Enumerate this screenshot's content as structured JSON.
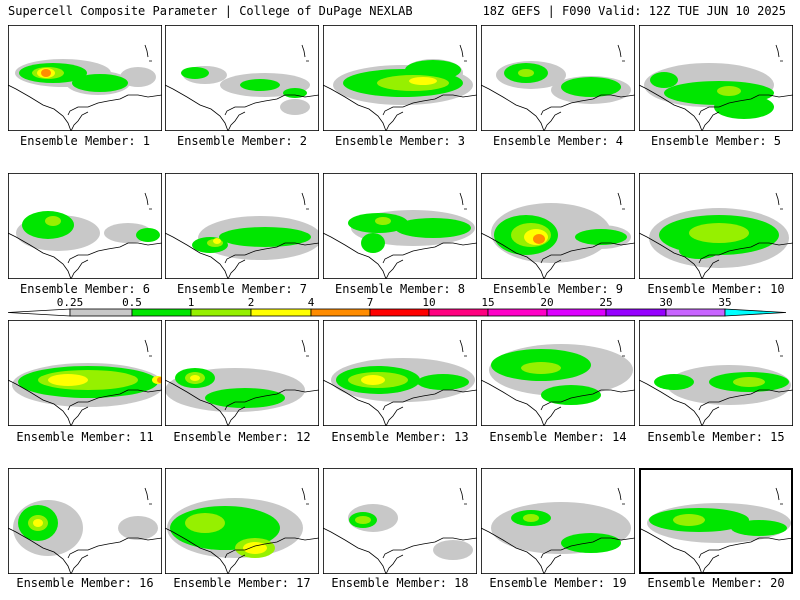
{
  "header": {
    "left": "Supercell Composite Parameter | College of DuPage NEXLAB",
    "right": "18Z GEFS | F090 Valid: 12Z TUE JUN 10 2025"
  },
  "members": [
    {
      "label": "Ensemble Member: 1"
    },
    {
      "label": "Ensemble Member: 2"
    },
    {
      "label": "Ensemble Member: 3"
    },
    {
      "label": "Ensemble Member: 4"
    },
    {
      "label": "Ensemble Member: 5"
    },
    {
      "label": "Ensemble Member: 6"
    },
    {
      "label": "Ensemble Member: 7"
    },
    {
      "label": "Ensemble Member: 8"
    },
    {
      "label": "Ensemble Member: 9"
    },
    {
      "label": "Ensemble Member: 10"
    },
    {
      "label": "Ensemble Member: 11"
    },
    {
      "label": "Ensemble Member: 12"
    },
    {
      "label": "Ensemble Member: 13"
    },
    {
      "label": "Ensemble Member: 14"
    },
    {
      "label": "Ensemble Member: 15"
    },
    {
      "label": "Ensemble Member: 16"
    },
    {
      "label": "Ensemble Member: 17"
    },
    {
      "label": "Ensemble Member: 18"
    },
    {
      "label": "Ensemble Member: 19"
    },
    {
      "label": "Ensemble Member: 20",
      "selected": true
    }
  ],
  "colorbar": {
    "ticks": [
      "0.25",
      "0.5",
      "1",
      "2",
      "4",
      "7",
      "10",
      "15",
      "20",
      "25",
      "30",
      "35"
    ],
    "colors": [
      "#c8c8c8",
      "#00e600",
      "#96f000",
      "#ffff00",
      "#ff8c00",
      "#ff0000",
      "#ff0080",
      "#ff00c8",
      "#dc00ff",
      "#9600ff",
      "#c864ff",
      "#00ffff"
    ],
    "outline_color": "#000000"
  },
  "colors": {
    "gray": "#c8c8c8",
    "green": "#00e600",
    "lime": "#96f000",
    "yellow": "#ffff00",
    "orange": "#ff8c00",
    "coast": "#000000"
  }
}
